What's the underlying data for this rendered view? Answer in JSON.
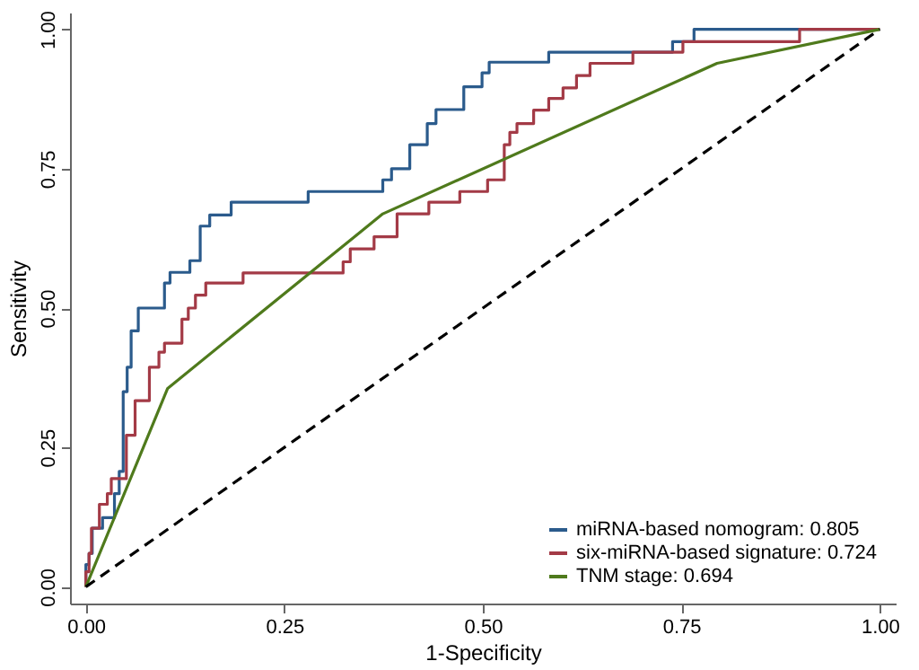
{
  "chart_data": {
    "type": "line",
    "xlabel": "1-Specificity",
    "ylabel": "Sensitivity",
    "xlim": [
      -0.02,
      1.02
    ],
    "ylim": [
      -0.03,
      1.03
    ],
    "xticks": [
      {
        "value": 0,
        "label": "0.00"
      },
      {
        "value": 0.25,
        "label": "0.25"
      },
      {
        "value": 0.5,
        "label": "0.50"
      },
      {
        "value": 0.75,
        "label": "0.75"
      },
      {
        "value": 1,
        "label": "1.00"
      }
    ],
    "yticks": [
      {
        "value": 0,
        "label": "0.00"
      },
      {
        "value": 0.25,
        "label": "0.25"
      },
      {
        "value": 0.5,
        "label": "0.50"
      },
      {
        "value": 0.75,
        "label": "0.75"
      },
      {
        "value": 1,
        "label": "1.00"
      }
    ],
    "grid": false,
    "legend": "bottom right",
    "marker": "none",
    "series": [
      {
        "name": "miRNA-based nomogram: 0.805",
        "color": "#2b5b8c",
        "x": [
          0,
          0,
          0.004,
          0.004,
          0.008,
          0.008,
          0.021,
          0.021,
          0.036,
          0.036,
          0.042,
          0.042,
          0.047,
          0.047,
          0.052,
          0.052,
          0.057,
          0.057,
          0.066,
          0.066,
          0.099,
          0.099,
          0.106,
          0.106,
          0.131,
          0.131,
          0.144,
          0.144,
          0.156,
          0.156,
          0.183,
          0.183,
          0.28,
          0.28,
          0.374,
          0.374,
          0.385,
          0.385,
          0.408,
          0.408,
          0.43,
          0.43,
          0.441,
          0.441,
          0.476,
          0.476,
          0.499,
          0.499,
          0.508,
          0.508,
          0.583,
          0.583,
          0.739,
          0.739,
          0.766,
          0.766,
          1
        ],
        "values": [
          0,
          0.04,
          0.04,
          0.06,
          0.06,
          0.105,
          0.105,
          0.124,
          0.124,
          0.167,
          0.167,
          0.207,
          0.207,
          0.35,
          0.35,
          0.394,
          0.394,
          0.459,
          0.459,
          0.5,
          0.5,
          0.545,
          0.545,
          0.564,
          0.564,
          0.585,
          0.585,
          0.647,
          0.647,
          0.667,
          0.667,
          0.69,
          0.69,
          0.709,
          0.709,
          0.73,
          0.73,
          0.75,
          0.75,
          0.793,
          0.793,
          0.831,
          0.831,
          0.856,
          0.856,
          0.897,
          0.897,
          0.922,
          0.922,
          0.941,
          0.941,
          0.959,
          0.959,
          0.978,
          0.978,
          1,
          1
        ]
      },
      {
        "name": "six-miRNA-based signature: 0.724",
        "color": "#a33a46",
        "x": [
          0,
          0,
          0.004,
          0.004,
          0.007,
          0.007,
          0.017,
          0.017,
          0.027,
          0.027,
          0.032,
          0.032,
          0.051,
          0.051,
          0.062,
          0.062,
          0.08,
          0.08,
          0.092,
          0.092,
          0.099,
          0.099,
          0.121,
          0.121,
          0.129,
          0.129,
          0.138,
          0.138,
          0.151,
          0.151,
          0.198,
          0.198,
          0.324,
          0.324,
          0.333,
          0.333,
          0.363,
          0.363,
          0.392,
          0.392,
          0.432,
          0.432,
          0.471,
          0.471,
          0.506,
          0.506,
          0.527,
          0.527,
          0.534,
          0.534,
          0.543,
          0.543,
          0.564,
          0.564,
          0.583,
          0.583,
          0.601,
          0.601,
          0.618,
          0.618,
          0.635,
          0.635,
          0.689,
          0.689,
          0.752,
          0.752,
          0.899,
          0.899,
          1
        ],
        "values": [
          0,
          0.027,
          0.027,
          0.06,
          0.06,
          0.105,
          0.105,
          0.148,
          0.148,
          0.167,
          0.167,
          0.194,
          0.194,
          0.272,
          0.272,
          0.334,
          0.334,
          0.394,
          0.394,
          0.421,
          0.421,
          0.437,
          0.437,
          0.48,
          0.48,
          0.5,
          0.5,
          0.523,
          0.523,
          0.545,
          0.545,
          0.563,
          0.563,
          0.583,
          0.583,
          0.606,
          0.606,
          0.628,
          0.628,
          0.669,
          0.669,
          0.69,
          0.69,
          0.709,
          0.709,
          0.73,
          0.73,
          0.793,
          0.793,
          0.815,
          0.815,
          0.831,
          0.831,
          0.855,
          0.855,
          0.876,
          0.876,
          0.895,
          0.895,
          0.917,
          0.917,
          0.939,
          0.939,
          0.959,
          0.959,
          0.978,
          0.978,
          1,
          1
        ]
      },
      {
        "name": "TNM stage: 0.694",
        "color": "#4f7a1c",
        "x": [
          0,
          0.103,
          0.374,
          0.795,
          1
        ],
        "values": [
          0,
          0.356,
          0.669,
          0.939,
          1
        ]
      },
      {
        "color": "#000000",
        "line_style": "dashed",
        "x": [
          0,
          1
        ],
        "values": [
          0,
          1
        ]
      }
    ]
  }
}
